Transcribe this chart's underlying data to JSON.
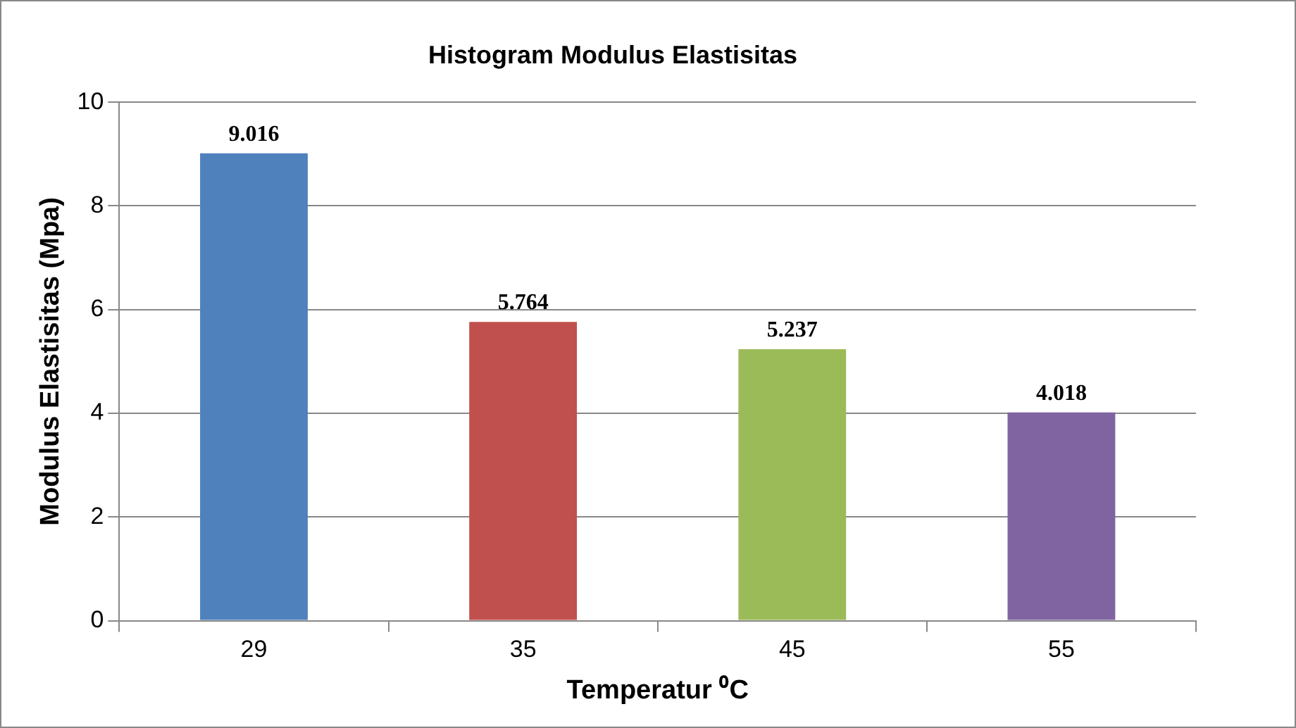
{
  "chart_data": {
    "type": "bar",
    "title": "Histogram Modulus Elastisitas",
    "xlabel": "Temperatur ⁰C",
    "ylabel": "Modulus Elastisitas (Mpa)",
    "categories": [
      "29",
      "35",
      "45",
      "55"
    ],
    "values": [
      9.016,
      5.764,
      5.237,
      4.018
    ],
    "colors": [
      "#4f81bd",
      "#c0504d",
      "#9bbb59",
      "#8064a2"
    ],
    "ylim": [
      0,
      10
    ],
    "yticks": [
      0,
      2,
      4,
      6,
      8,
      10
    ],
    "grid": "y",
    "data_labels": true
  }
}
